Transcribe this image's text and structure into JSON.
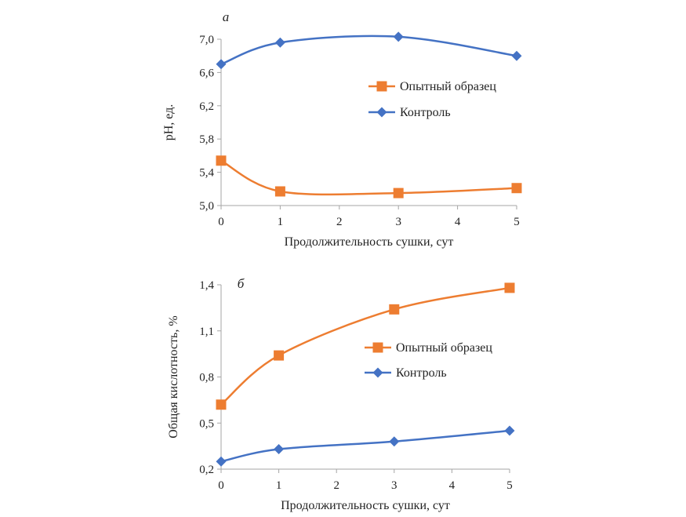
{
  "chart_data": [
    {
      "type": "line",
      "panel_label": "а",
      "xlabel": "Продолжительность сушки, сут",
      "ylabel": "pH, ед.",
      "xlim": [
        0,
        5
      ],
      "ylim": [
        5.0,
        7.0
      ],
      "x_ticks": [
        0,
        1,
        2,
        3,
        4,
        5
      ],
      "x_tick_labels": [
        "0",
        "1",
        "2",
        "3",
        "4",
        "5"
      ],
      "y_ticks": [
        5.0,
        5.4,
        5.8,
        6.2,
        6.6,
        7.0
      ],
      "y_tick_labels": [
        "5,0",
        "5,4",
        "5,8",
        "6,2",
        "6,6",
        "7,0"
      ],
      "grid": false,
      "legend_position": "right",
      "series": [
        {
          "name": "Опытный образец",
          "color": "#ED7D31",
          "marker": "square",
          "x": [
            0,
            1,
            3,
            5
          ],
          "y": [
            5.54,
            5.17,
            5.15,
            5.21
          ]
        },
        {
          "name": "Контроль",
          "color": "#4472C4",
          "marker": "diamond",
          "x": [
            0,
            1,
            3,
            5
          ],
          "y": [
            6.7,
            6.96,
            7.03,
            6.8
          ]
        }
      ]
    },
    {
      "type": "line",
      "panel_label": "б",
      "xlabel": "Продолжительность сушки, сут",
      "ylabel": "Общая кислотность, %",
      "xlim": [
        0,
        5
      ],
      "ylim": [
        0.2,
        1.4
      ],
      "x_ticks": [
        0,
        1,
        2,
        3,
        4,
        5
      ],
      "x_tick_labels": [
        "0",
        "1",
        "2",
        "3",
        "4",
        "5"
      ],
      "y_ticks": [
        0.2,
        0.5,
        0.8,
        1.1,
        1.4
      ],
      "y_tick_labels": [
        "0,2",
        "0,5",
        "0,8",
        "1,1",
        "1,4"
      ],
      "grid": false,
      "legend_position": "right",
      "series": [
        {
          "name": "Опытный образец",
          "color": "#ED7D31",
          "marker": "square",
          "x": [
            0,
            1,
            3,
            5
          ],
          "y": [
            0.62,
            0.94,
            1.24,
            1.38
          ]
        },
        {
          "name": "Контроль",
          "color": "#4472C4",
          "marker": "diamond",
          "x": [
            0,
            1,
            3,
            5
          ],
          "y": [
            0.25,
            0.33,
            0.38,
            0.45
          ]
        }
      ]
    }
  ]
}
